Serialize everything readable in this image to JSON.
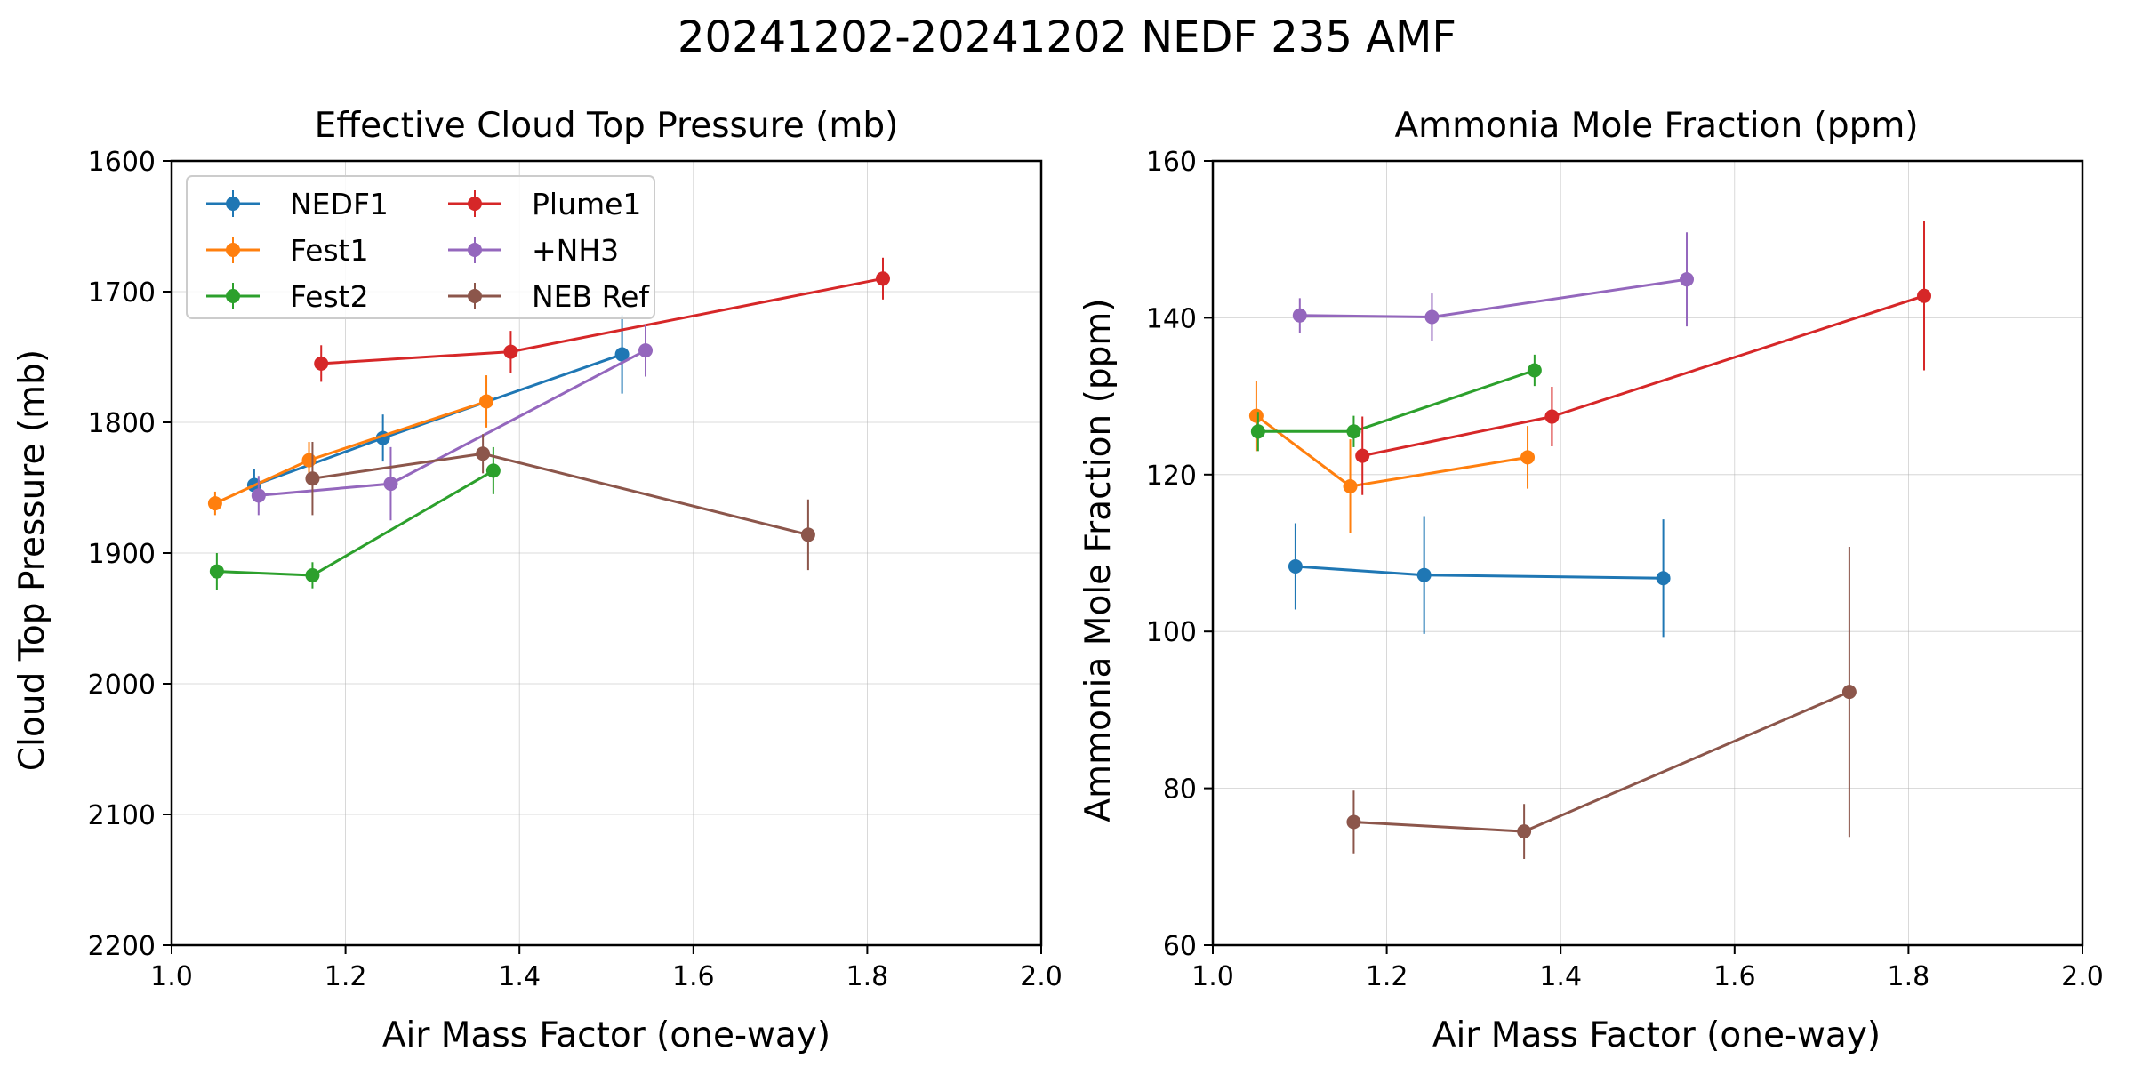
{
  "figure": {
    "suptitle": "20241202-20241202 NEDF 235 AMF"
  },
  "legend": {
    "placement": "upper-left of left panel, 2 columns"
  },
  "chart_data": [
    {
      "type": "line",
      "title": "Effective Cloud Top Pressure (mb)",
      "xlabel": "Air Mass Factor (one-way)",
      "ylabel": "Cloud Top Pressure (mb)",
      "xlim": [
        1.0,
        2.0
      ],
      "ylim": [
        2200,
        1600
      ],
      "y_inverted": true,
      "xticks": [
        "1.0",
        "1.2",
        "1.4",
        "1.6",
        "1.8",
        "2.0"
      ],
      "yticks": [
        "1600",
        "1700",
        "1800",
        "1900",
        "2000",
        "2100",
        "2200"
      ],
      "grid": true,
      "legend": true,
      "series": [
        {
          "name": "NEDF1",
          "color": "#1f77b4",
          "x": [
            1.095,
            1.243,
            1.518
          ],
          "y": [
            1848,
            1812,
            1748
          ],
          "err": [
            12,
            18,
            30
          ]
        },
        {
          "name": "Fest1",
          "color": "#ff7f0e",
          "x": [
            1.05,
            1.158,
            1.362
          ],
          "y": [
            1862,
            1829,
            1784
          ],
          "err": [
            9,
            14,
            20
          ]
        },
        {
          "name": "Fest2",
          "color": "#2ca02c",
          "x": [
            1.052,
            1.162,
            1.37
          ],
          "y": [
            1914,
            1917,
            1837
          ],
          "err": [
            14,
            10,
            18
          ]
        },
        {
          "name": "Plume1",
          "color": "#d62728",
          "x": [
            1.172,
            1.39,
            1.818
          ],
          "y": [
            1755,
            1746,
            1690
          ],
          "err": [
            14,
            16,
            16
          ]
        },
        {
          "name": "+NH3",
          "color": "#9467bd",
          "x": [
            1.1,
            1.252,
            1.545
          ],
          "y": [
            1856,
            1847,
            1745
          ],
          "err": [
            15,
            28,
            20
          ]
        },
        {
          "name": "NEB Ref",
          "color": "#8c564b",
          "x": [
            1.162,
            1.358,
            1.732
          ],
          "y": [
            1843,
            1824,
            1886
          ],
          "err": [
            28,
            15,
            27
          ]
        }
      ]
    },
    {
      "type": "line",
      "title": "Ammonia Mole Fraction (ppm)",
      "xlabel": "Air Mass Factor (one-way)",
      "ylabel": "Ammonia Mole Fraction (ppm)",
      "xlim": [
        1.0,
        2.0
      ],
      "ylim": [
        60,
        160
      ],
      "y_inverted": false,
      "xticks": [
        "1.0",
        "1.2",
        "1.4",
        "1.6",
        "1.8",
        "2.0"
      ],
      "yticks": [
        "60",
        "80",
        "100",
        "120",
        "140",
        "160"
      ],
      "grid": true,
      "legend": false,
      "series": [
        {
          "name": "NEDF1",
          "color": "#1f77b4",
          "x": [
            1.095,
            1.243,
            1.518
          ],
          "y": [
            108.3,
            107.2,
            106.8
          ],
          "err": [
            5.5,
            7.5,
            7.5
          ]
        },
        {
          "name": "Fest1",
          "color": "#ff7f0e",
          "x": [
            1.05,
            1.158,
            1.362
          ],
          "y": [
            127.5,
            118.5,
            122.2
          ],
          "err": [
            4.5,
            6.0,
            4.0
          ]
        },
        {
          "name": "Fest2",
          "color": "#2ca02c",
          "x": [
            1.052,
            1.162,
            1.37
          ],
          "y": [
            125.5,
            125.5,
            133.3
          ],
          "err": [
            2.5,
            2.0,
            2.0
          ]
        },
        {
          "name": "Plume1",
          "color": "#d62728",
          "x": [
            1.172,
            1.39,
            1.818
          ],
          "y": [
            122.4,
            127.4,
            142.8
          ],
          "err": [
            5.0,
            3.8,
            9.5
          ]
        },
        {
          "name": "+NH3",
          "color": "#9467bd",
          "x": [
            1.1,
            1.252,
            1.545
          ],
          "y": [
            140.3,
            140.1,
            144.9
          ],
          "err": [
            2.2,
            3.0,
            6.0
          ]
        },
        {
          "name": "NEB Ref",
          "color": "#8c564b",
          "x": [
            1.162,
            1.358,
            1.732
          ],
          "y": [
            75.7,
            74.5,
            92.3
          ],
          "err": [
            4.0,
            3.5,
            18.5
          ]
        }
      ]
    }
  ]
}
